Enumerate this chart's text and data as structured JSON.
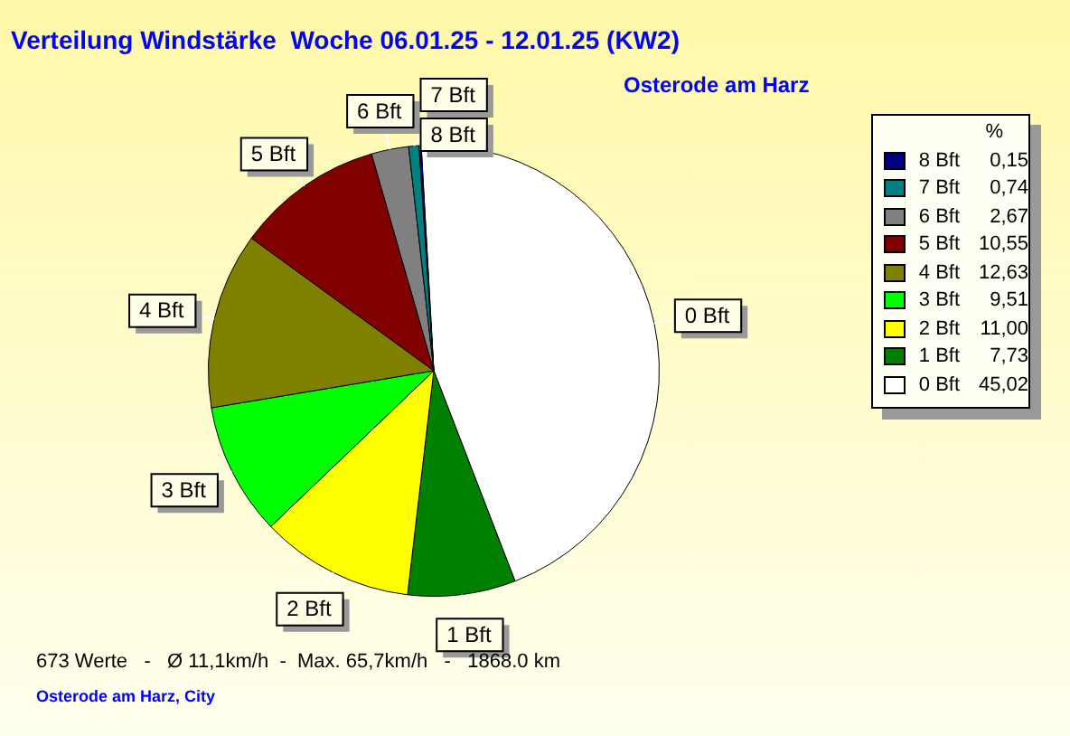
{
  "chart_data": {
    "type": "pie",
    "title": "Verteilung Windstärke  Woche 06.01.25 - 12.01.25 (KW2)",
    "subtitle": "Osterode am Harz",
    "categories": [
      "8 Bft",
      "7 Bft",
      "6 Bft",
      "5 Bft",
      "4 Bft",
      "3 Bft",
      "2 Bft",
      "1 Bft",
      "0 Bft"
    ],
    "values": [
      0.15,
      0.74,
      2.67,
      10.55,
      12.63,
      9.51,
      11.0,
      7.73,
      45.02
    ],
    "value_labels": [
      "0,15",
      "0,74",
      "2,67",
      "10,55",
      "12,63",
      "9,51",
      "11,00",
      "7,73",
      "45,02"
    ],
    "colors": [
      "#000080",
      "#008080",
      "#808080",
      "#800000",
      "#808000",
      "#00ff00",
      "#ffff00",
      "#008000",
      "#ffffff"
    ],
    "legend": "right",
    "legend_title": "%",
    "annotations": [
      "673 Werte   -   Ø 11,1km/h  -  Max. 65,7km/h   -   1868.0 km",
      "Osterode am Harz, City"
    ]
  }
}
